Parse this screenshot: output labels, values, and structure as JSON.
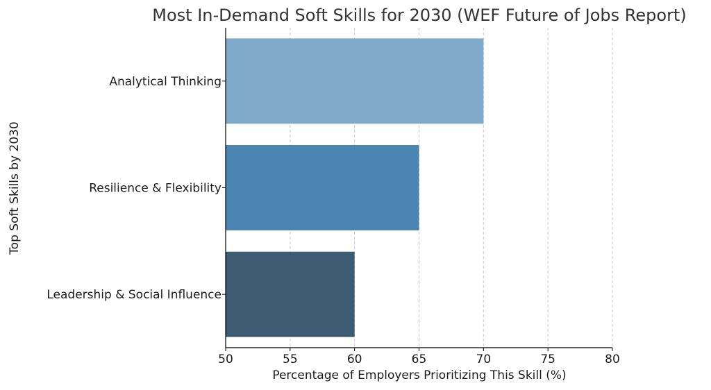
{
  "chart_data": {
    "type": "bar",
    "orientation": "horizontal",
    "title": "Most In-Demand Soft Skills for 2030 (WEF Future of Jobs Report)",
    "xlabel": "Percentage of Employers Prioritizing This Skill (%)",
    "ylabel": "Top Soft Skills by 2030",
    "xlim": [
      50,
      80
    ],
    "xticks": [
      50,
      55,
      60,
      65,
      70,
      75,
      80
    ],
    "grid": "vertical-dashed",
    "categories": [
      "Analytical Thinking",
      "Resilience & Flexibility",
      "Leadership & Social Influence"
    ],
    "values": [
      70,
      65,
      60
    ],
    "colors": [
      "#7fa9c8",
      "#4a84b0",
      "#3d5b71"
    ]
  }
}
